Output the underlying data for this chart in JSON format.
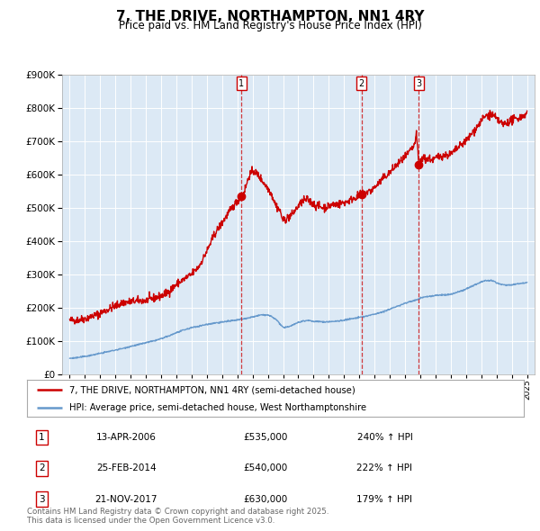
{
  "title": "7, THE DRIVE, NORTHAMPTON, NN1 4RY",
  "subtitle": "Price paid vs. HM Land Registry's House Price Index (HPI)",
  "title_fontsize": 11,
  "subtitle_fontsize": 8.5,
  "background_color": "#ffffff",
  "plot_bg_color": "#dce9f5",
  "legend_line1": "7, THE DRIVE, NORTHAMPTON, NN1 4RY (semi-detached house)",
  "legend_line2": "HPI: Average price, semi-detached house, West Northamptonshire",
  "red_color": "#cc0000",
  "blue_color": "#6699cc",
  "footer": "Contains HM Land Registry data © Crown copyright and database right 2025.\nThis data is licensed under the Open Government Licence v3.0.",
  "sale_points": [
    {
      "label": "1",
      "date": 2006.28,
      "price": 535000,
      "pct": "240%",
      "date_str": "13-APR-2006",
      "price_str": "£535,000"
    },
    {
      "label": "2",
      "date": 2014.15,
      "price": 540000,
      "pct": "222%",
      "date_str": "25-FEB-2014",
      "price_str": "£540,000"
    },
    {
      "label": "3",
      "date": 2017.9,
      "price": 630000,
      "pct": "179%",
      "date_str": "21-NOV-2017",
      "price_str": "£630,000"
    }
  ],
  "ylim": [
    0,
    900000
  ],
  "yticks": [
    0,
    100000,
    200000,
    300000,
    400000,
    500000,
    600000,
    700000,
    800000,
    900000
  ],
  "xlim_start": 1994.5,
  "xlim_end": 2025.5
}
